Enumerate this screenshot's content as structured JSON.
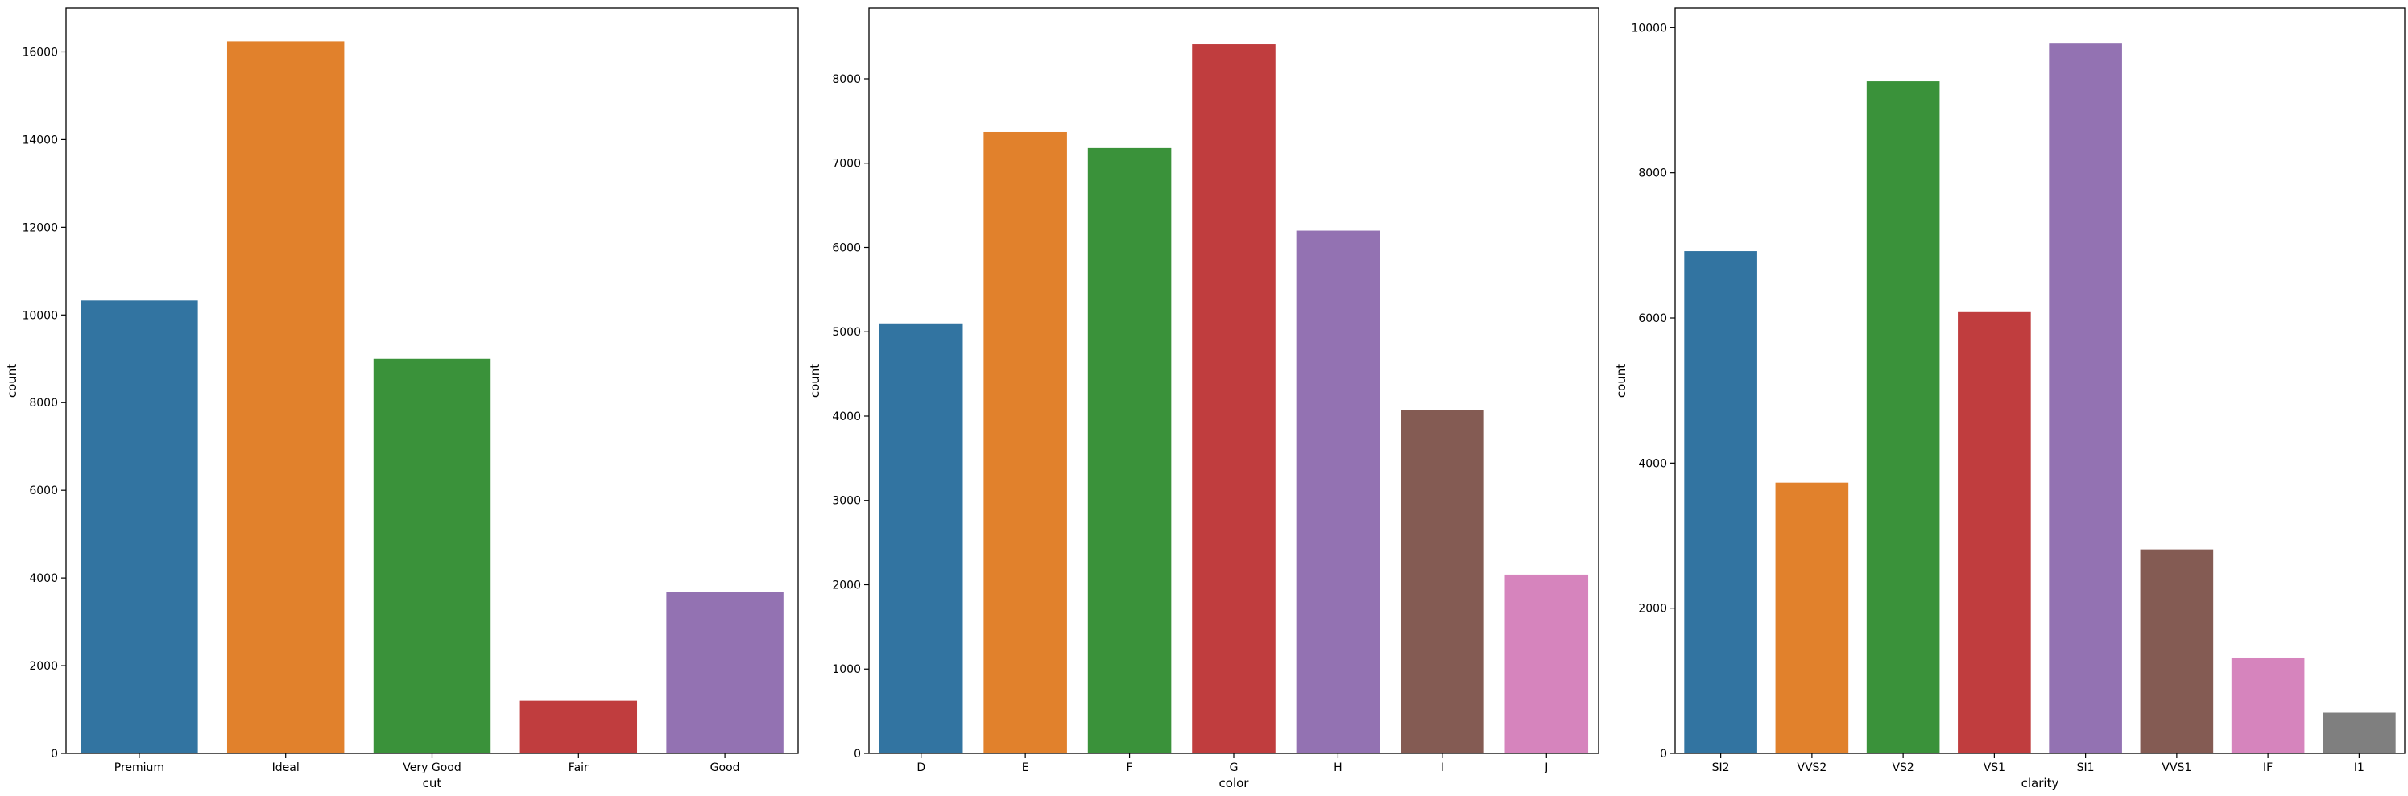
{
  "chart_data": [
    {
      "type": "bar",
      "xlabel": "cut",
      "ylabel": "count",
      "categories": [
        "Premium",
        "Ideal",
        "Very Good",
        "Fair",
        "Good"
      ],
      "values": [
        10330,
        16240,
        9000,
        1200,
        3690
      ],
      "colors": [
        "#3274a1",
        "#e1812c",
        "#3a923a",
        "#c03d3e",
        "#9372b2"
      ],
      "ylim": [
        0,
        17000
      ],
      "yticks": [
        0,
        2000,
        4000,
        6000,
        8000,
        10000,
        12000,
        14000,
        16000
      ],
      "grid": false
    },
    {
      "type": "bar",
      "xlabel": "color",
      "ylabel": "count",
      "categories": [
        "D",
        "E",
        "F",
        "G",
        "H",
        "I",
        "J"
      ],
      "values": [
        5100,
        7370,
        7180,
        8410,
        6200,
        4070,
        2120
      ],
      "colors": [
        "#3274a1",
        "#e1812c",
        "#3a923a",
        "#c03d3e",
        "#9372b2",
        "#845b53",
        "#d684bd"
      ],
      "ylim": [
        0,
        8840
      ],
      "yticks": [
        0,
        1000,
        2000,
        3000,
        4000,
        5000,
        6000,
        7000,
        8000
      ],
      "grid": false
    },
    {
      "type": "bar",
      "xlabel": "clarity",
      "ylabel": "count",
      "categories": [
        "SI2",
        "VVS2",
        "VS2",
        "VS1",
        "SI1",
        "VVS1",
        "IF",
        "I1"
      ],
      "values": [
        6920,
        3730,
        9260,
        6080,
        9780,
        2810,
        1320,
        560
      ],
      "colors": [
        "#3274a1",
        "#e1812c",
        "#3a923a",
        "#c03d3e",
        "#9372b2",
        "#845b53",
        "#d684bd",
        "#7f7f7f"
      ],
      "ylim": [
        0,
        10270
      ],
      "yticks": [
        0,
        2000,
        4000,
        6000,
        8000,
        10000
      ],
      "grid": false
    }
  ]
}
